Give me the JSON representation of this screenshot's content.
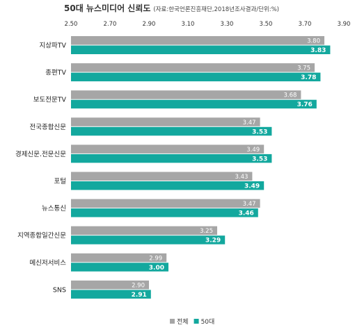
{
  "chart_data": {
    "type": "bar",
    "orientation": "horizontal",
    "title": "50대 뉴스미디어 신뢰도",
    "subtitle": "(자료:한국언론진흥재단,2018년조사결과/단위:%)",
    "categories": [
      "지상파TV",
      "종편TV",
      "보도전문TV",
      "전국종합신문",
      "경제신문.전문신문",
      "포털",
      "뉴스통신",
      "지역종합일간신문",
      "메신저서비스",
      "SNS"
    ],
    "series": [
      {
        "name": "전체",
        "values": [
          3.8,
          3.75,
          3.68,
          3.47,
          3.49,
          3.43,
          3.47,
          3.25,
          2.99,
          2.9
        ],
        "color": "#a6a6a6"
      },
      {
        "name": "50대",
        "values": [
          3.83,
          3.78,
          3.76,
          3.53,
          3.53,
          3.49,
          3.46,
          3.29,
          3.0,
          2.91
        ],
        "color": "#13a89e"
      }
    ],
    "xlim": [
      2.5,
      3.9
    ],
    "xticks": [
      "2.50",
      "2.70",
      "2.90",
      "3.10",
      "3.30",
      "3.50",
      "3.70",
      "3.90"
    ],
    "grid": false,
    "legend_position": "bottom-right"
  }
}
